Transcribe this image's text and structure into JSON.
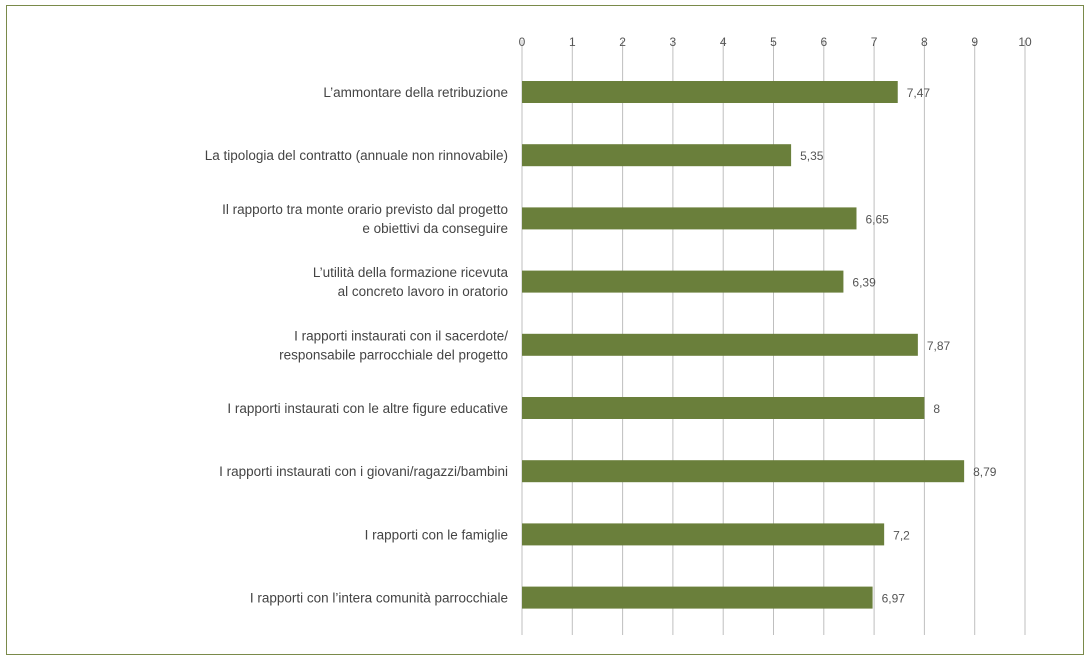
{
  "chart_data": {
    "type": "bar",
    "orientation": "horizontal",
    "title": "",
    "xlabel": "",
    "ylabel": "",
    "xlim": [
      0,
      10
    ],
    "ticks": [
      "0",
      "1",
      "2",
      "3",
      "4",
      "5",
      "6",
      "7",
      "8",
      "9",
      "10"
    ],
    "grid": true,
    "bar_color": "#6a7f3b",
    "categories": [
      [
        "L’ammontare della retribuzione"
      ],
      [
        "La tipologia del contratto (annuale non rinnovabile)"
      ],
      [
        "Il rapporto tra monte orario previsto dal progetto",
        "e obiettivi da conseguire"
      ],
      [
        "L’utilità della formazione ricevuta",
        "al concreto lavoro in oratorio"
      ],
      [
        "I rapporti instaurati con il sacerdote/",
        "responsabile parrocchiale del progetto"
      ],
      [
        "I rapporti instaurati con le altre figure educative"
      ],
      [
        "I rapporti instaurati con i giovani/ragazzi/bambini"
      ],
      [
        "I rapporti con le famiglie"
      ],
      [
        "I rapporti con l’intera comunità parrocchiale"
      ]
    ],
    "values": [
      7.47,
      5.35,
      6.65,
      6.39,
      7.87,
      8,
      8.79,
      7.2,
      6.97
    ],
    "value_labels": [
      "7,47",
      "5,35",
      "6,65",
      "6,39",
      "7,87",
      "8",
      "8,79",
      "7,2",
      "6,97"
    ]
  }
}
